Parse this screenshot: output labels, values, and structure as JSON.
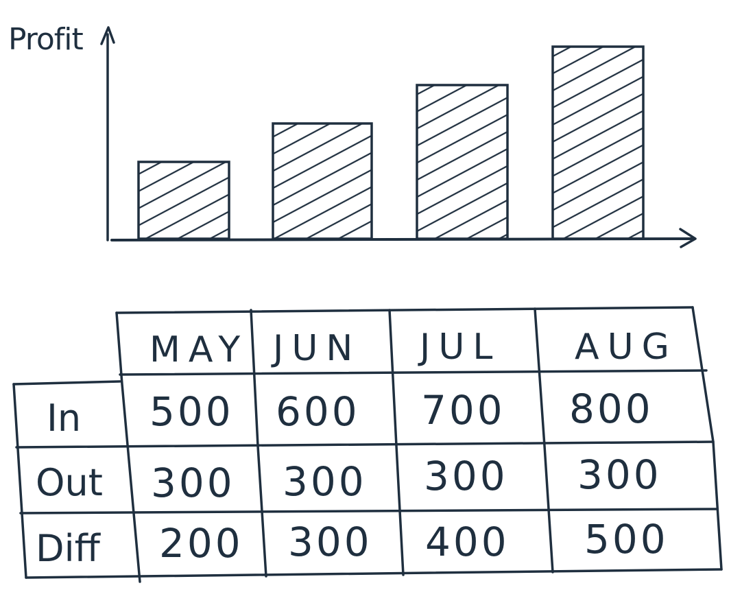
{
  "chart_data": {
    "type": "bar",
    "ylabel": "Profit",
    "xlabel": "",
    "categories": [
      "MAY",
      "JUN",
      "JUL",
      "AUG"
    ],
    "series": [
      {
        "values": [
          200,
          300,
          400,
          500
        ]
      }
    ],
    "ylim": [
      0,
      550
    ],
    "grid": false,
    "bar_fill": "hatched",
    "color": "#1f2f3f"
  },
  "table": {
    "columns": [
      "MAY",
      "JUN",
      "JUL",
      "AUG"
    ],
    "rows": [
      {
        "label": "In",
        "values": [
          "500",
          "600",
          "700",
          "800"
        ]
      },
      {
        "label": "Out",
        "values": [
          "300",
          "300",
          "300",
          "300"
        ]
      },
      {
        "label": "Diff",
        "values": [
          "200",
          "300",
          "400",
          "500"
        ]
      }
    ]
  }
}
